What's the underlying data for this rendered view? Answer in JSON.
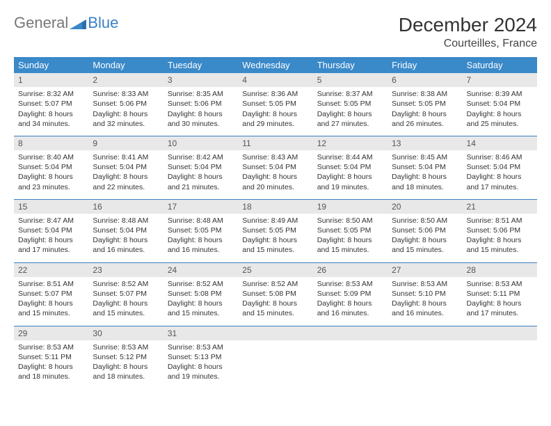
{
  "logo": {
    "text1": "General",
    "text2": "Blue"
  },
  "title": "December 2024",
  "location": "Courteilles, France",
  "header_bg": "#3a89c9",
  "accent": "#3a7fc4",
  "daynum_bg": "#e8e8e8",
  "weekdays": [
    "Sunday",
    "Monday",
    "Tuesday",
    "Wednesday",
    "Thursday",
    "Friday",
    "Saturday"
  ],
  "weeks": [
    [
      {
        "n": "1",
        "sr": "8:32 AM",
        "ss": "5:07 PM",
        "dl": "8 hours and 34 minutes."
      },
      {
        "n": "2",
        "sr": "8:33 AM",
        "ss": "5:06 PM",
        "dl": "8 hours and 32 minutes."
      },
      {
        "n": "3",
        "sr": "8:35 AM",
        "ss": "5:06 PM",
        "dl": "8 hours and 30 minutes."
      },
      {
        "n": "4",
        "sr": "8:36 AM",
        "ss": "5:05 PM",
        "dl": "8 hours and 29 minutes."
      },
      {
        "n": "5",
        "sr": "8:37 AM",
        "ss": "5:05 PM",
        "dl": "8 hours and 27 minutes."
      },
      {
        "n": "6",
        "sr": "8:38 AM",
        "ss": "5:05 PM",
        "dl": "8 hours and 26 minutes."
      },
      {
        "n": "7",
        "sr": "8:39 AM",
        "ss": "5:04 PM",
        "dl": "8 hours and 25 minutes."
      }
    ],
    [
      {
        "n": "8",
        "sr": "8:40 AM",
        "ss": "5:04 PM",
        "dl": "8 hours and 23 minutes."
      },
      {
        "n": "9",
        "sr": "8:41 AM",
        "ss": "5:04 PM",
        "dl": "8 hours and 22 minutes."
      },
      {
        "n": "10",
        "sr": "8:42 AM",
        "ss": "5:04 PM",
        "dl": "8 hours and 21 minutes."
      },
      {
        "n": "11",
        "sr": "8:43 AM",
        "ss": "5:04 PM",
        "dl": "8 hours and 20 minutes."
      },
      {
        "n": "12",
        "sr": "8:44 AM",
        "ss": "5:04 PM",
        "dl": "8 hours and 19 minutes."
      },
      {
        "n": "13",
        "sr": "8:45 AM",
        "ss": "5:04 PM",
        "dl": "8 hours and 18 minutes."
      },
      {
        "n": "14",
        "sr": "8:46 AM",
        "ss": "5:04 PM",
        "dl": "8 hours and 17 minutes."
      }
    ],
    [
      {
        "n": "15",
        "sr": "8:47 AM",
        "ss": "5:04 PM",
        "dl": "8 hours and 17 minutes."
      },
      {
        "n": "16",
        "sr": "8:48 AM",
        "ss": "5:04 PM",
        "dl": "8 hours and 16 minutes."
      },
      {
        "n": "17",
        "sr": "8:48 AM",
        "ss": "5:05 PM",
        "dl": "8 hours and 16 minutes."
      },
      {
        "n": "18",
        "sr": "8:49 AM",
        "ss": "5:05 PM",
        "dl": "8 hours and 15 minutes."
      },
      {
        "n": "19",
        "sr": "8:50 AM",
        "ss": "5:05 PM",
        "dl": "8 hours and 15 minutes."
      },
      {
        "n": "20",
        "sr": "8:50 AM",
        "ss": "5:06 PM",
        "dl": "8 hours and 15 minutes."
      },
      {
        "n": "21",
        "sr": "8:51 AM",
        "ss": "5:06 PM",
        "dl": "8 hours and 15 minutes."
      }
    ],
    [
      {
        "n": "22",
        "sr": "8:51 AM",
        "ss": "5:07 PM",
        "dl": "8 hours and 15 minutes."
      },
      {
        "n": "23",
        "sr": "8:52 AM",
        "ss": "5:07 PM",
        "dl": "8 hours and 15 minutes."
      },
      {
        "n": "24",
        "sr": "8:52 AM",
        "ss": "5:08 PM",
        "dl": "8 hours and 15 minutes."
      },
      {
        "n": "25",
        "sr": "8:52 AM",
        "ss": "5:08 PM",
        "dl": "8 hours and 15 minutes."
      },
      {
        "n": "26",
        "sr": "8:53 AM",
        "ss": "5:09 PM",
        "dl": "8 hours and 16 minutes."
      },
      {
        "n": "27",
        "sr": "8:53 AM",
        "ss": "5:10 PM",
        "dl": "8 hours and 16 minutes."
      },
      {
        "n": "28",
        "sr": "8:53 AM",
        "ss": "5:11 PM",
        "dl": "8 hours and 17 minutes."
      }
    ],
    [
      {
        "n": "29",
        "sr": "8:53 AM",
        "ss": "5:11 PM",
        "dl": "8 hours and 18 minutes."
      },
      {
        "n": "30",
        "sr": "8:53 AM",
        "ss": "5:12 PM",
        "dl": "8 hours and 18 minutes."
      },
      {
        "n": "31",
        "sr": "8:53 AM",
        "ss": "5:13 PM",
        "dl": "8 hours and 19 minutes."
      },
      null,
      null,
      null,
      null
    ]
  ],
  "labels": {
    "sunrise": "Sunrise: ",
    "sunset": "Sunset: ",
    "daylight": "Daylight: "
  }
}
